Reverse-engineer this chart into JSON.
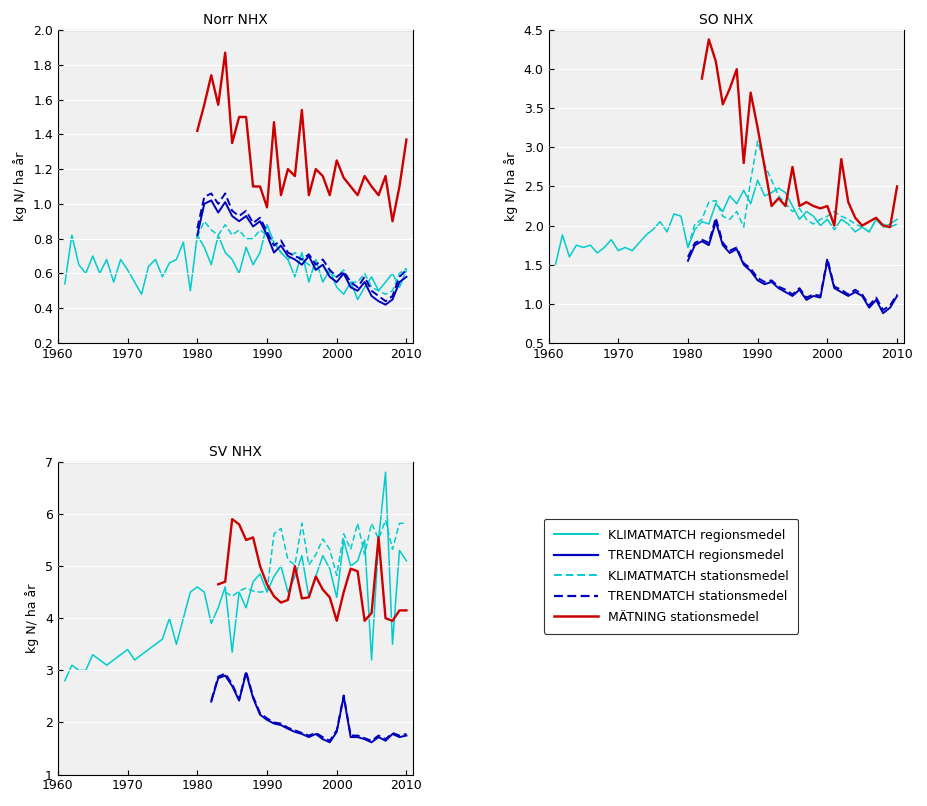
{
  "titles": [
    "Norr NHX",
    "SO NHX",
    "SV NHX"
  ],
  "ylabel": "kg N/ ha år",
  "xlim": [
    1960,
    2011
  ],
  "legend_labels": [
    "KLIMATMATCH regionsmedel",
    "TRENDMATCH regionsmedel",
    "KLIMATMATCH stationsmedel",
    "TRENDMATCH stationsmedel",
    "MÄTNING stationsmedel"
  ],
  "norr": {
    "ylim": [
      0.2,
      2.0
    ],
    "yticks": [
      0.2,
      0.4,
      0.6,
      0.8,
      1.0,
      1.2,
      1.4,
      1.6,
      1.8,
      2.0
    ],
    "cyan_solid": {
      "x": [
        1961,
        1962,
        1963,
        1964,
        1965,
        1966,
        1967,
        1968,
        1969,
        1970,
        1971,
        1972,
        1973,
        1974,
        1975,
        1976,
        1977,
        1978,
        1979,
        1980,
        1981,
        1982,
        1983,
        1984,
        1985,
        1986,
        1987,
        1988,
        1989,
        1990,
        1991,
        1992,
        1993,
        1994,
        1995,
        1996,
        1997,
        1998,
        1999,
        2000,
        2001,
        2002,
        2003,
        2004,
        2005,
        2006,
        2007,
        2008,
        2009,
        2010
      ],
      "y": [
        0.54,
        0.82,
        0.65,
        0.6,
        0.7,
        0.6,
        0.68,
        0.55,
        0.68,
        0.62,
        0.55,
        0.48,
        0.64,
        0.68,
        0.58,
        0.66,
        0.68,
        0.78,
        0.5,
        0.82,
        0.75,
        0.65,
        0.82,
        0.72,
        0.68,
        0.6,
        0.75,
        0.65,
        0.72,
        0.88,
        0.78,
        0.72,
        0.68,
        0.58,
        0.72,
        0.55,
        0.68,
        0.55,
        0.62,
        0.52,
        0.48,
        0.55,
        0.45,
        0.52,
        0.58,
        0.5,
        0.55,
        0.6,
        0.52,
        0.62
      ]
    },
    "blue_solid": {
      "x": [
        1980,
        1981,
        1982,
        1983,
        1984,
        1985,
        1986,
        1987,
        1988,
        1989,
        1990,
        1991,
        1992,
        1993,
        1994,
        1995,
        1996,
        1997,
        1998,
        1999,
        2000,
        2001,
        2002,
        2003,
        2004,
        2005,
        2006,
        2007,
        2008,
        2009,
        2010
      ],
      "y": [
        0.82,
        1.0,
        1.02,
        0.95,
        1.01,
        0.93,
        0.9,
        0.93,
        0.87,
        0.9,
        0.82,
        0.72,
        0.76,
        0.7,
        0.68,
        0.65,
        0.7,
        0.62,
        0.65,
        0.58,
        0.55,
        0.6,
        0.52,
        0.5,
        0.55,
        0.47,
        0.44,
        0.42,
        0.45,
        0.55,
        0.58
      ]
    },
    "cyan_dashed": {
      "x": [
        1980,
        1981,
        1982,
        1983,
        1984,
        1985,
        1986,
        1987,
        1988,
        1989,
        1990,
        1991,
        1992,
        1993,
        1994,
        1995,
        1996,
        1997,
        1998,
        1999,
        2000,
        2001,
        2002,
        2003,
        2004,
        2005,
        2006,
        2007,
        2008,
        2009,
        2010
      ],
      "y": [
        0.81,
        0.9,
        0.85,
        0.82,
        0.88,
        0.82,
        0.85,
        0.8,
        0.8,
        0.85,
        0.82,
        0.78,
        0.72,
        0.68,
        0.72,
        0.68,
        0.65,
        0.62,
        0.65,
        0.6,
        0.58,
        0.62,
        0.55,
        0.55,
        0.6,
        0.52,
        0.5,
        0.48,
        0.5,
        0.6,
        0.63
      ]
    },
    "blue_dashed": {
      "x": [
        1980,
        1981,
        1982,
        1983,
        1984,
        1985,
        1986,
        1987,
        1988,
        1989,
        1990,
        1991,
        1992,
        1993,
        1994,
        1995,
        1996,
        1997,
        1998,
        1999,
        2000,
        2001,
        2002,
        2003,
        2004,
        2005,
        2006,
        2007,
        2008,
        2009,
        2010
      ],
      "y": [
        0.86,
        1.04,
        1.06,
        1.0,
        1.06,
        0.96,
        0.93,
        0.96,
        0.89,
        0.92,
        0.84,
        0.76,
        0.79,
        0.72,
        0.7,
        0.68,
        0.71,
        0.65,
        0.68,
        0.62,
        0.58,
        0.61,
        0.55,
        0.52,
        0.58,
        0.5,
        0.47,
        0.44,
        0.47,
        0.58,
        0.62
      ]
    },
    "red_solid": {
      "x": [
        1980,
        1981,
        1982,
        1983,
        1984,
        1985,
        1986,
        1987,
        1988,
        1989,
        1990,
        1991,
        1992,
        1993,
        1994,
        1995,
        1996,
        1997,
        1998,
        1999,
        2000,
        2001,
        2002,
        2003,
        2004,
        2005,
        2006,
        2007,
        2008,
        2009,
        2010
      ],
      "y": [
        1.42,
        1.57,
        1.74,
        1.57,
        1.87,
        1.35,
        1.5,
        1.5,
        1.1,
        1.1,
        0.98,
        1.47,
        1.05,
        1.2,
        1.16,
        1.54,
        1.05,
        1.2,
        1.16,
        1.05,
        1.25,
        1.15,
        1.1,
        1.05,
        1.16,
        1.1,
        1.05,
        1.16,
        0.9,
        1.1,
        1.37
      ]
    }
  },
  "so": {
    "ylim": [
      0.5,
      4.5
    ],
    "yticks": [
      0.5,
      1.0,
      1.5,
      2.0,
      2.5,
      3.0,
      3.5,
      4.0,
      4.5
    ],
    "cyan_solid": {
      "x": [
        1961,
        1962,
        1963,
        1964,
        1965,
        1966,
        1967,
        1968,
        1969,
        1970,
        1971,
        1972,
        1973,
        1974,
        1975,
        1976,
        1977,
        1978,
        1979,
        1980,
        1981,
        1982,
        1983,
        1984,
        1985,
        1986,
        1987,
        1988,
        1989,
        1990,
        1991,
        1992,
        1993,
        1994,
        1995,
        1996,
        1997,
        1998,
        1999,
        2000,
        2001,
        2002,
        2003,
        2004,
        2005,
        2006,
        2007,
        2008,
        2009,
        2010
      ],
      "y": [
        1.5,
        1.88,
        1.6,
        1.75,
        1.72,
        1.75,
        1.65,
        1.72,
        1.82,
        1.68,
        1.72,
        1.68,
        1.78,
        1.88,
        1.95,
        2.05,
        1.92,
        2.15,
        2.12,
        1.72,
        1.95,
        2.05,
        2.02,
        2.28,
        2.18,
        2.38,
        2.28,
        2.45,
        2.28,
        2.58,
        2.38,
        2.42,
        2.48,
        2.42,
        2.25,
        2.08,
        2.18,
        2.12,
        2.0,
        2.08,
        1.95,
        2.08,
        2.02,
        1.92,
        1.98,
        1.92,
        2.08,
        1.98,
        2.02,
        2.08
      ]
    },
    "blue_solid": {
      "x": [
        1980,
        1981,
        1982,
        1983,
        1984,
        1985,
        1986,
        1987,
        1988,
        1989,
        1990,
        1991,
        1992,
        1993,
        1994,
        1995,
        1996,
        1997,
        1998,
        1999,
        2000,
        2001,
        2002,
        2003,
        2004,
        2005,
        2006,
        2007,
        2008,
        2009,
        2010
      ],
      "y": [
        1.55,
        1.75,
        1.8,
        1.75,
        2.05,
        1.75,
        1.65,
        1.7,
        1.5,
        1.42,
        1.3,
        1.25,
        1.28,
        1.2,
        1.15,
        1.1,
        1.18,
        1.05,
        1.1,
        1.08,
        1.55,
        1.2,
        1.15,
        1.1,
        1.15,
        1.1,
        0.95,
        1.05,
        0.88,
        0.95,
        1.1
      ]
    },
    "cyan_dashed": {
      "x": [
        1980,
        1981,
        1982,
        1983,
        1984,
        1985,
        1986,
        1987,
        1988,
        1989,
        1990,
        1991,
        1992,
        1993,
        1994,
        1995,
        1996,
        1997,
        1998,
        1999,
        2000,
        2001,
        2002,
        2003,
        2004,
        2005,
        2006,
        2007,
        2008,
        2009,
        2010
      ],
      "y": [
        1.72,
        2.02,
        2.08,
        2.3,
        2.32,
        2.12,
        2.08,
        2.18,
        1.98,
        2.58,
        3.08,
        2.78,
        2.58,
        2.38,
        2.28,
        2.18,
        2.22,
        2.08,
        2.02,
        2.08,
        2.12,
        2.18,
        2.12,
        2.08,
        2.02,
        1.98,
        1.92,
        2.08,
        2.02,
        1.98,
        2.02
      ]
    },
    "blue_dashed": {
      "x": [
        1980,
        1981,
        1982,
        1983,
        1984,
        1985,
        1986,
        1987,
        1988,
        1989,
        1990,
        1991,
        1992,
        1993,
        1994,
        1995,
        1996,
        1997,
        1998,
        1999,
        2000,
        2001,
        2002,
        2003,
        2004,
        2005,
        2006,
        2007,
        2008,
        2009,
        2010
      ],
      "y": [
        1.6,
        1.78,
        1.82,
        1.78,
        2.1,
        1.78,
        1.68,
        1.72,
        1.52,
        1.45,
        1.33,
        1.28,
        1.3,
        1.22,
        1.18,
        1.12,
        1.2,
        1.08,
        1.12,
        1.1,
        1.58,
        1.22,
        1.18,
        1.12,
        1.18,
        1.12,
        0.98,
        1.08,
        0.92,
        0.98,
        1.12
      ]
    },
    "red_solid": {
      "x": [
        1982,
        1983,
        1984,
        1985,
        1986,
        1987,
        1988,
        1989,
        1990,
        1991,
        1992,
        1993,
        1994,
        1995,
        1996,
        1997,
        1998,
        1999,
        2000,
        2001,
        2002,
        2003,
        2004,
        2005,
        2006,
        2007,
        2008,
        2009,
        2010
      ],
      "y": [
        3.88,
        4.38,
        4.1,
        3.55,
        3.75,
        4.0,
        2.8,
        3.7,
        3.25,
        2.75,
        2.25,
        2.35,
        2.25,
        2.75,
        2.25,
        2.3,
        2.25,
        2.22,
        2.25,
        2.0,
        2.85,
        2.3,
        2.1,
        2.0,
        2.05,
        2.1,
        2.0,
        1.98,
        2.5
      ]
    }
  },
  "sv": {
    "ylim": [
      1.0,
      7.0
    ],
    "yticks": [
      1,
      2,
      3,
      4,
      5,
      6,
      7
    ],
    "cyan_solid": {
      "x": [
        1961,
        1962,
        1963,
        1964,
        1965,
        1966,
        1967,
        1968,
        1969,
        1970,
        1971,
        1972,
        1973,
        1974,
        1975,
        1976,
        1977,
        1978,
        1979,
        1980,
        1981,
        1982,
        1983,
        1984,
        1985,
        1986,
        1987,
        1988,
        1989,
        1990,
        1991,
        1992,
        1993,
        1994,
        1995,
        1996,
        1997,
        1998,
        1999,
        2000,
        2001,
        2002,
        2003,
        2004,
        2005,
        2006,
        2007,
        2008,
        2009,
        2010
      ],
      "y": [
        2.8,
        3.1,
        3.0,
        3.0,
        3.3,
        3.2,
        3.1,
        3.2,
        3.3,
        3.4,
        3.2,
        3.3,
        3.4,
        3.5,
        3.6,
        4.0,
        3.5,
        4.0,
        4.5,
        4.6,
        4.5,
        3.9,
        4.2,
        4.6,
        3.35,
        4.5,
        4.2,
        4.7,
        4.85,
        4.5,
        4.8,
        5.0,
        4.5,
        4.8,
        5.2,
        4.4,
        4.8,
        5.2,
        4.95,
        4.4,
        5.5,
        5.0,
        5.1,
        5.5,
        3.2,
        5.5,
        6.8,
        3.5,
        5.3,
        5.1
      ]
    },
    "blue_solid": {
      "x": [
        1982,
        1983,
        1984,
        1985,
        1986,
        1987,
        1988,
        1989,
        1990,
        1991,
        1992,
        1993,
        1994,
        1995,
        1996,
        1997,
        1998,
        1999,
        2000,
        2001,
        2002,
        2003,
        2004,
        2005,
        2006,
        2007,
        2008,
        2009,
        2010
      ],
      "y": [
        2.4,
        2.85,
        2.9,
        2.7,
        2.42,
        2.95,
        2.47,
        2.15,
        2.05,
        1.98,
        1.95,
        1.88,
        1.82,
        1.78,
        1.72,
        1.78,
        1.68,
        1.62,
        1.82,
        2.5,
        1.72,
        1.72,
        1.68,
        1.62,
        1.72,
        1.65,
        1.78,
        1.72,
        1.75
      ]
    },
    "cyan_dashed": {
      "x": [
        1984,
        1985,
        1986,
        1987,
        1988,
        1989,
        1990,
        1991,
        1992,
        1993,
        1994,
        1995,
        1996,
        1997,
        1998,
        1999,
        2000,
        2001,
        2002,
        2003,
        2004,
        2005,
        2006,
        2007,
        2008,
        2009,
        2010
      ],
      "y": [
        4.5,
        4.42,
        4.52,
        4.58,
        4.52,
        4.5,
        4.52,
        5.62,
        5.72,
        5.12,
        5.02,
        5.82,
        5.02,
        5.22,
        5.52,
        5.32,
        4.82,
        5.62,
        5.32,
        5.82,
        5.22,
        5.82,
        5.52,
        5.88,
        5.32,
        5.82,
        5.82
      ]
    },
    "blue_dashed": {
      "x": [
        1982,
        1983,
        1984,
        1985,
        1986,
        1987,
        1988,
        1989,
        1990,
        1991,
        1992,
        1993,
        1994,
        1995,
        1996,
        1997,
        1998,
        1999,
        2000,
        2001,
        2002,
        2003,
        2004,
        2005,
        2006,
        2007,
        2008,
        2009,
        2010
      ],
      "y": [
        2.42,
        2.88,
        2.94,
        2.74,
        2.44,
        2.98,
        2.5,
        2.18,
        2.08,
        2.0,
        1.98,
        1.9,
        1.85,
        1.8,
        1.75,
        1.8,
        1.72,
        1.65,
        1.85,
        2.52,
        1.75,
        1.75,
        1.7,
        1.65,
        1.75,
        1.68,
        1.8,
        1.75,
        1.78
      ]
    },
    "red_solid": {
      "x": [
        1983,
        1984,
        1985,
        1986,
        1987,
        1988,
        1989,
        1990,
        1991,
        1992,
        1993,
        1994,
        1995,
        1996,
        1997,
        1998,
        1999,
        2000,
        2001,
        2002,
        2003,
        2004,
        2005,
        2006,
        2007,
        2008,
        2009,
        2010
      ],
      "y": [
        4.65,
        4.7,
        5.9,
        5.8,
        5.5,
        5.55,
        5.0,
        4.65,
        4.42,
        4.3,
        4.35,
        5.0,
        4.38,
        4.4,
        4.8,
        4.55,
        4.4,
        3.95,
        4.5,
        4.95,
        4.9,
        3.95,
        4.1,
        5.55,
        4.0,
        3.95,
        4.15,
        4.15
      ]
    }
  }
}
